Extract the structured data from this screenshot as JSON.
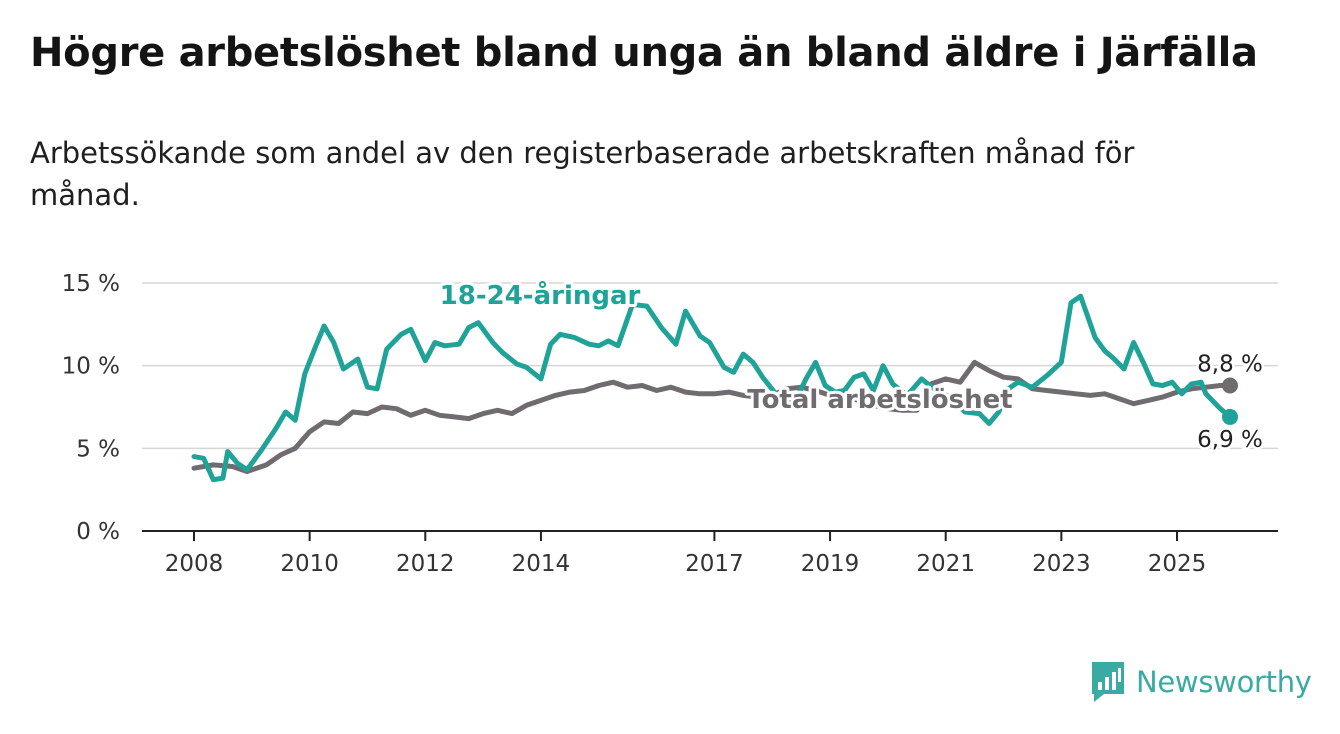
{
  "header": {
    "title": "Högre arbetslöshet bland unga än bland äldre i Järfälla",
    "subtitle": "Arbetssökande som andel av den registerbaserade arbetskraften månad för månad."
  },
  "brand": {
    "name": "Newsworthy",
    "icon": "newsworthy-logo-icon",
    "color": "#3aaba2"
  },
  "chart_data": {
    "type": "line",
    "title": "Högre arbetslöshet bland unga än bland äldre i Järfälla",
    "subtitle": "Arbetssökande som andel av den registerbaserade arbetskraften månad för månad.",
    "xlim": [
      "2008-01",
      "2025-12"
    ],
    "ylim": [
      0,
      15
    ],
    "y_ticks": [
      0,
      5,
      10,
      15
    ],
    "y_tick_labels": [
      "0 %",
      "5 %",
      "10 %",
      "15 %"
    ],
    "x_tick_labels": [
      "2008",
      "2010",
      "2012",
      "2014",
      "2017",
      "2019",
      "2021",
      "2023",
      "2025"
    ],
    "x_tick_dates": [
      "2008-01",
      "2010-01",
      "2012-01",
      "2014-01",
      "2017-01",
      "2019-01",
      "2021-01",
      "2023-01",
      "2025-01"
    ],
    "grid": true,
    "legend": "direct labels on lines",
    "series": [
      {
        "name": "18-24-åringar",
        "color": "#1fa398",
        "end_label": "6,9 %",
        "points": [
          [
            "2008-01",
            4.5
          ],
          [
            "2008-03",
            4.4
          ],
          [
            "2008-05",
            3.1
          ],
          [
            "2008-07",
            3.2
          ],
          [
            "2008-08",
            4.8
          ],
          [
            "2008-10",
            4.1
          ],
          [
            "2008-12",
            3.7
          ],
          [
            "2009-03",
            4.9
          ],
          [
            "2009-06",
            6.2
          ],
          [
            "2009-08",
            7.2
          ],
          [
            "2009-10",
            6.7
          ],
          [
            "2009-12",
            9.5
          ],
          [
            "2010-02",
            11.0
          ],
          [
            "2010-04",
            12.4
          ],
          [
            "2010-06",
            11.4
          ],
          [
            "2010-08",
            9.8
          ],
          [
            "2010-11",
            10.4
          ],
          [
            "2011-01",
            8.7
          ],
          [
            "2011-03",
            8.6
          ],
          [
            "2011-05",
            11.0
          ],
          [
            "2011-08",
            11.9
          ],
          [
            "2011-10",
            12.2
          ],
          [
            "2012-01",
            10.3
          ],
          [
            "2012-03",
            11.4
          ],
          [
            "2012-05",
            11.2
          ],
          [
            "2012-08",
            11.3
          ],
          [
            "2012-10",
            12.3
          ],
          [
            "2012-12",
            12.6
          ],
          [
            "2013-03",
            11.4
          ],
          [
            "2013-05",
            10.8
          ],
          [
            "2013-08",
            10.1
          ],
          [
            "2013-10",
            9.9
          ],
          [
            "2014-01",
            9.2
          ],
          [
            "2014-03",
            11.3
          ],
          [
            "2014-05",
            11.9
          ],
          [
            "2014-08",
            11.7
          ],
          [
            "2014-11",
            11.3
          ],
          [
            "2015-01",
            11.2
          ],
          [
            "2015-03",
            11.5
          ],
          [
            "2015-05",
            11.2
          ],
          [
            "2015-08",
            13.7
          ],
          [
            "2015-11",
            13.6
          ],
          [
            "2016-02",
            12.3
          ],
          [
            "2016-05",
            11.3
          ],
          [
            "2016-07",
            13.3
          ],
          [
            "2016-10",
            11.8
          ],
          [
            "2016-12",
            11.4
          ],
          [
            "2017-03",
            9.9
          ],
          [
            "2017-05",
            9.6
          ],
          [
            "2017-07",
            10.7
          ],
          [
            "2017-09",
            10.2
          ],
          [
            "2017-11",
            9.3
          ],
          [
            "2018-02",
            8.2
          ],
          [
            "2018-04",
            7.9
          ],
          [
            "2018-06",
            8.0
          ],
          [
            "2018-08",
            9.2
          ],
          [
            "2018-10",
            10.2
          ],
          [
            "2018-12",
            8.8
          ],
          [
            "2019-02",
            8.4
          ],
          [
            "2019-04",
            8.5
          ],
          [
            "2019-06",
            9.3
          ],
          [
            "2019-08",
            9.5
          ],
          [
            "2019-10",
            8.5
          ],
          [
            "2019-12",
            10.0
          ],
          [
            "2020-02",
            8.9
          ],
          [
            "2020-05",
            8.2
          ],
          [
            "2020-08",
            9.2
          ],
          [
            "2020-11",
            8.5
          ],
          [
            "2021-02",
            8.1
          ],
          [
            "2021-05",
            7.2
          ],
          [
            "2021-08",
            7.1
          ],
          [
            "2021-10",
            6.5
          ],
          [
            "2021-12",
            7.2
          ],
          [
            "2022-02",
            8.6
          ],
          [
            "2022-04",
            9.0
          ],
          [
            "2022-07",
            8.7
          ],
          [
            "2022-10",
            9.4
          ],
          [
            "2023-01",
            10.2
          ],
          [
            "2023-03",
            13.8
          ],
          [
            "2023-05",
            14.2
          ],
          [
            "2023-08",
            11.7
          ],
          [
            "2023-10",
            10.9
          ],
          [
            "2023-12",
            10.4
          ],
          [
            "2024-02",
            9.8
          ],
          [
            "2024-04",
            11.4
          ],
          [
            "2024-06",
            10.2
          ],
          [
            "2024-08",
            8.9
          ],
          [
            "2024-10",
            8.8
          ],
          [
            "2024-12",
            9.0
          ],
          [
            "2025-02",
            8.3
          ],
          [
            "2025-04",
            8.9
          ],
          [
            "2025-06",
            9.0
          ],
          [
            "2025-07",
            8.3
          ],
          [
            "2025-09",
            7.7
          ],
          [
            "2025-10",
            7.4
          ],
          [
            "2025-12",
            6.9
          ]
        ]
      },
      {
        "name": "Total arbetslöshet",
        "color": "#6f6b6f",
        "end_label": "8,8 %",
        "points": [
          [
            "2008-01",
            3.8
          ],
          [
            "2008-05",
            4.0
          ],
          [
            "2008-09",
            3.9
          ],
          [
            "2008-12",
            3.6
          ],
          [
            "2009-04",
            4.0
          ],
          [
            "2009-07",
            4.6
          ],
          [
            "2009-10",
            5.0
          ],
          [
            "2010-01",
            6.0
          ],
          [
            "2010-04",
            6.6
          ],
          [
            "2010-07",
            6.5
          ],
          [
            "2010-10",
            7.2
          ],
          [
            "2011-01",
            7.1
          ],
          [
            "2011-04",
            7.5
          ],
          [
            "2011-07",
            7.4
          ],
          [
            "2011-10",
            7.0
          ],
          [
            "2012-01",
            7.3
          ],
          [
            "2012-04",
            7.0
          ],
          [
            "2012-07",
            6.9
          ],
          [
            "2012-10",
            6.8
          ],
          [
            "2013-01",
            7.1
          ],
          [
            "2013-04",
            7.3
          ],
          [
            "2013-07",
            7.1
          ],
          [
            "2013-10",
            7.6
          ],
          [
            "2014-01",
            7.9
          ],
          [
            "2014-04",
            8.2
          ],
          [
            "2014-07",
            8.4
          ],
          [
            "2014-10",
            8.5
          ],
          [
            "2015-01",
            8.8
          ],
          [
            "2015-04",
            9.0
          ],
          [
            "2015-07",
            8.7
          ],
          [
            "2015-10",
            8.8
          ],
          [
            "2016-01",
            8.5
          ],
          [
            "2016-04",
            8.7
          ],
          [
            "2016-07",
            8.4
          ],
          [
            "2016-10",
            8.3
          ],
          [
            "2017-01",
            8.3
          ],
          [
            "2017-04",
            8.4
          ],
          [
            "2017-07",
            8.2
          ],
          [
            "2017-10",
            8.1
          ],
          [
            "2018-01",
            8.2
          ],
          [
            "2018-04",
            8.6
          ],
          [
            "2018-07",
            8.7
          ],
          [
            "2018-10",
            8.5
          ],
          [
            "2019-01",
            8.2
          ],
          [
            "2019-04",
            8.1
          ],
          [
            "2019-07",
            7.9
          ],
          [
            "2019-10",
            7.6
          ],
          [
            "2020-01",
            7.4
          ],
          [
            "2020-04",
            7.3
          ],
          [
            "2020-07",
            7.3
          ],
          [
            "2020-10",
            8.9
          ],
          [
            "2021-01",
            9.2
          ],
          [
            "2021-04",
            9.0
          ],
          [
            "2021-07",
            10.2
          ],
          [
            "2021-10",
            9.7
          ],
          [
            "2022-01",
            9.3
          ],
          [
            "2022-04",
            9.2
          ],
          [
            "2022-07",
            8.6
          ],
          [
            "2022-10",
            8.5
          ],
          [
            "2023-01",
            8.4
          ],
          [
            "2023-04",
            8.3
          ],
          [
            "2023-07",
            8.2
          ],
          [
            "2023-10",
            8.3
          ],
          [
            "2024-01",
            8.0
          ],
          [
            "2024-04",
            7.7
          ],
          [
            "2024-07",
            7.9
          ],
          [
            "2024-10",
            8.1
          ],
          [
            "2025-01",
            8.4
          ],
          [
            "2025-04",
            8.6
          ],
          [
            "2025-07",
            8.7
          ],
          [
            "2025-10",
            8.8
          ],
          [
            "2025-12",
            8.8
          ]
        ]
      }
    ]
  }
}
